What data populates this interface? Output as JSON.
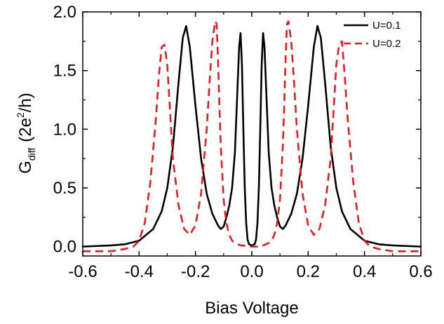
{
  "chart_data": {
    "type": "line",
    "xlabel": "Bias Voltage",
    "ylabel_main": "G",
    "ylabel_sub": "diff",
    "ylabel_units_pre": "(2e",
    "ylabel_units_sup": "2",
    "ylabel_units_post": "/h)",
    "xlim": [
      -0.6,
      0.6
    ],
    "ylim": [
      -0.08,
      2.0
    ],
    "x_ticks": [
      -0.6,
      -0.4,
      -0.2,
      0.0,
      0.2,
      0.4,
      0.6
    ],
    "x_tick_labels": [
      "-0.6",
      "-0.4",
      "-0.2",
      "0.0",
      "0.2",
      "0.4",
      "0.6"
    ],
    "y_ticks": [
      0.0,
      0.5,
      1.0,
      1.5,
      2.0
    ],
    "y_tick_labels": [
      "0.0",
      "0.5",
      "1.0",
      "1.5",
      "2.0"
    ],
    "grid": false,
    "legend_position": "top-right",
    "series": [
      {
        "name": "U=0.1",
        "color": "#000000",
        "dash": "solid",
        "x": [
          -0.6,
          -0.5,
          -0.45,
          -0.4,
          -0.35,
          -0.32,
          -0.3,
          -0.28,
          -0.26,
          -0.245,
          -0.233,
          -0.22,
          -0.2,
          -0.18,
          -0.16,
          -0.14,
          -0.12,
          -0.11,
          -0.1,
          -0.09,
          -0.08,
          -0.07,
          -0.06,
          -0.05,
          -0.045,
          -0.04,
          -0.035,
          -0.03,
          -0.025,
          -0.02,
          -0.015,
          -0.01,
          0.0,
          0.01,
          0.015,
          0.02,
          0.025,
          0.03,
          0.035,
          0.04,
          0.045,
          0.05,
          0.06,
          0.07,
          0.08,
          0.09,
          0.1,
          0.11,
          0.12,
          0.14,
          0.16,
          0.18,
          0.2,
          0.22,
          0.233,
          0.245,
          0.26,
          0.28,
          0.3,
          0.32,
          0.35,
          0.4,
          0.45,
          0.5,
          0.6
        ],
        "y": [
          0.0,
          0.01,
          0.02,
          0.05,
          0.15,
          0.3,
          0.5,
          0.85,
          1.4,
          1.78,
          1.88,
          1.7,
          1.2,
          0.75,
          0.45,
          0.28,
          0.18,
          0.15,
          0.17,
          0.25,
          0.35,
          0.5,
          0.8,
          1.4,
          1.7,
          1.82,
          1.55,
          1.0,
          0.5,
          0.2,
          0.06,
          0.02,
          0.01,
          0.02,
          0.06,
          0.2,
          0.5,
          1.0,
          1.55,
          1.82,
          1.7,
          1.4,
          0.8,
          0.5,
          0.35,
          0.25,
          0.17,
          0.15,
          0.18,
          0.28,
          0.45,
          0.75,
          1.2,
          1.7,
          1.88,
          1.78,
          1.4,
          0.85,
          0.5,
          0.3,
          0.15,
          0.05,
          0.02,
          0.01,
          0.0
        ]
      },
      {
        "name": "U=0.2",
        "color": "#e8191f",
        "dash": "dashed",
        "x": [
          -0.6,
          -0.55,
          -0.5,
          -0.45,
          -0.42,
          -0.4,
          -0.38,
          -0.36,
          -0.34,
          -0.33,
          -0.32,
          -0.31,
          -0.3,
          -0.29,
          -0.28,
          -0.26,
          -0.24,
          -0.22,
          -0.2,
          -0.18,
          -0.16,
          -0.15,
          -0.14,
          -0.13,
          -0.125,
          -0.12,
          -0.115,
          -0.11,
          -0.1,
          -0.09,
          -0.08,
          -0.07,
          -0.06,
          -0.05,
          -0.04,
          -0.03,
          -0.02,
          -0.01,
          0.0,
          0.01,
          0.02,
          0.03,
          0.04,
          0.05,
          0.06,
          0.07,
          0.08,
          0.09,
          0.1,
          0.11,
          0.115,
          0.12,
          0.125,
          0.13,
          0.14,
          0.15,
          0.16,
          0.18,
          0.2,
          0.22,
          0.24,
          0.26,
          0.28,
          0.29,
          0.3,
          0.31,
          0.32,
          0.33,
          0.34,
          0.36,
          0.38,
          0.4,
          0.42,
          0.45,
          0.5,
          0.55,
          0.6
        ],
        "y": [
          -0.04,
          -0.04,
          -0.04,
          -0.02,
          0.0,
          0.05,
          0.2,
          0.55,
          1.1,
          1.45,
          1.7,
          1.72,
          1.55,
          1.15,
          0.75,
          0.35,
          0.15,
          0.1,
          0.18,
          0.45,
          1.0,
          1.4,
          1.75,
          1.92,
          1.9,
          1.6,
          1.2,
          0.85,
          0.4,
          0.2,
          0.1,
          0.05,
          0.03,
          0.02,
          0.01,
          0.01,
          0.0,
          0.0,
          0.0,
          0.0,
          0.0,
          0.01,
          0.01,
          0.02,
          0.03,
          0.05,
          0.1,
          0.2,
          0.4,
          0.85,
          1.2,
          1.6,
          1.9,
          1.92,
          1.75,
          1.4,
          1.0,
          0.45,
          0.18,
          0.1,
          0.15,
          0.35,
          0.75,
          1.15,
          1.55,
          1.72,
          1.75,
          1.45,
          1.1,
          0.55,
          0.2,
          0.05,
          0.0,
          -0.02,
          -0.04,
          -0.04,
          -0.04
        ]
      }
    ]
  }
}
